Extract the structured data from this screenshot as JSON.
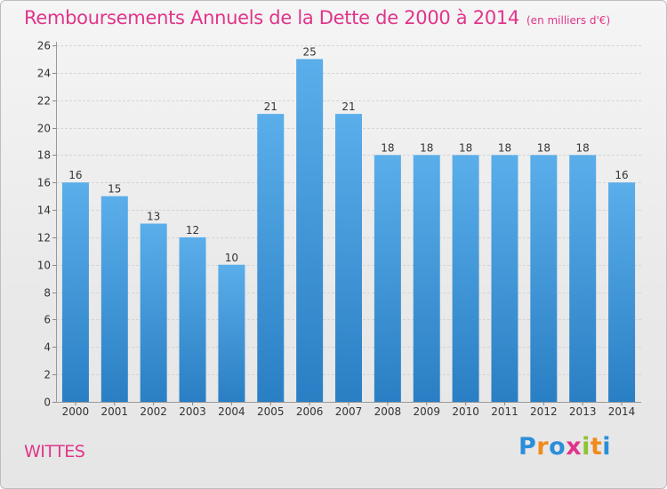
{
  "title": "Remboursements Annuels de la Dette de 2000 à 2014",
  "subtitle": "(en milliers d'€)",
  "commune": "WITTES",
  "logo_text": "Proxiti",
  "colors": {
    "title": "#e0358a",
    "bar_top": "#5aaeea",
    "bar_bottom": "#2a7fc4",
    "logo_letters": [
      "#2b8ed8",
      "#f08a1c",
      "#2b8ed8",
      "#e0358a",
      "#8fc234",
      "#f08a1c",
      "#2b8ed8"
    ]
  },
  "chart_data": {
    "type": "bar",
    "categories": [
      "2000",
      "2001",
      "2002",
      "2003",
      "2004",
      "2005",
      "2006",
      "2007",
      "2008",
      "2009",
      "2010",
      "2011",
      "2012",
      "2013",
      "2014"
    ],
    "values": [
      16,
      15,
      13,
      12,
      10,
      21,
      25,
      21,
      18,
      18,
      18,
      18,
      18,
      18,
      16
    ],
    "ylim": [
      0,
      26
    ],
    "yticks": [
      0,
      2,
      4,
      6,
      8,
      10,
      12,
      14,
      16,
      18,
      20,
      22,
      24,
      26
    ],
    "grid": true,
    "data_labels": true
  }
}
